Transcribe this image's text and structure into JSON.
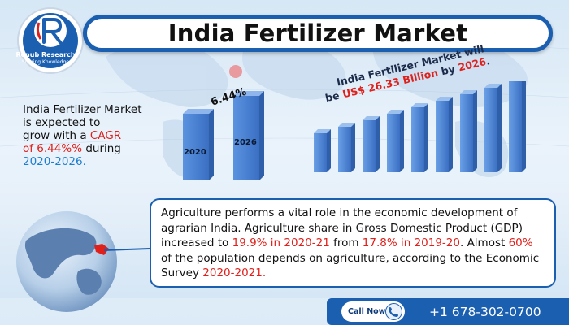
{
  "header": {
    "title": "India Fertilizer Market",
    "logo_name": "Renub Research",
    "logo_tagline": "Sharing Knowledge"
  },
  "growth_note": {
    "line1": "India Fertilizer Market",
    "line2": "is expected to",
    "line3_prefix": "grow with a ",
    "line3_highlight": "CAGR",
    "line4_highlight": "of 6.44%%",
    "line4_suffix": " during",
    "period": "2020-2026."
  },
  "mini_chart": {
    "cagr_label": "6.44%",
    "years": [
      "2020",
      "2026"
    ]
  },
  "value_note": {
    "line1": "India Fertilizer Market will",
    "line2_prefix": "be ",
    "line2_value": "US$ 26.33 Billion",
    "line2_mid": " by ",
    "line2_year": "2026",
    "line2_end": "."
  },
  "info": {
    "t1": "Agriculture performs a vital role in the economic development of agrarian India. Agriculture share in Gross Domestic Product (GDP) increased to ",
    "h1": "19.9% in 2020-21",
    "t2": " from ",
    "h2": "17.8% in 2019-20",
    "t3": ". Almost ",
    "h3": "60%",
    "t4": " of the population depends on agriculture, according to the Economic Survey ",
    "h4": "2020-2021."
  },
  "footer": {
    "call_label": "Call Now",
    "phone": "+1 678-302-0700"
  },
  "colors": {
    "brand_blue": "#1b5fb0",
    "highlight_red": "#e0201b",
    "highlight_blue": "#1e7fd0",
    "bar_blue": "#4f86d8"
  },
  "icons": [
    "logo-r-icon",
    "phone-icon",
    "globe-icon"
  ]
}
